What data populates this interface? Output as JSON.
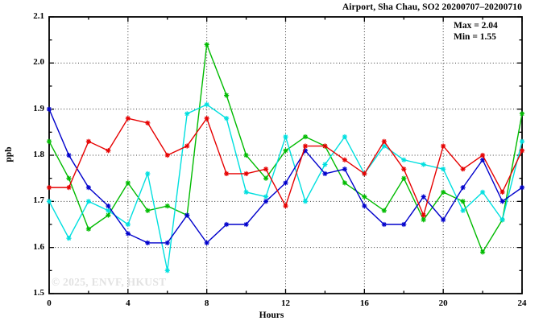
{
  "title": "Airport, Sha Chau, SO2 20200707–20200710",
  "annotation": {
    "max_label": "Max = 2.04",
    "min_label": "Min = 1.55"
  },
  "watermark": "© 2025, ENVF, HKUST",
  "axes": {
    "ylabel": "ppb",
    "xlabel": "Hours"
  },
  "chart_data": {
    "type": "line",
    "title": "Airport, Sha Chau, SO2 20200707–20200710",
    "xlabel": "Hours",
    "ylabel": "ppb",
    "xlim": [
      0,
      24
    ],
    "ylim": [
      1.5,
      2.1
    ],
    "legend": "none",
    "grid": "dotted-major",
    "x_major_ticks": [
      0,
      4,
      8,
      12,
      16,
      20,
      24
    ],
    "x_tick_labels": [
      "0",
      "4",
      "8",
      "12",
      "16",
      "20",
      "24"
    ],
    "x_minor_ticks": [
      2,
      6,
      10,
      14,
      18,
      22
    ],
    "y_major_ticks": [
      1.5,
      1.6,
      1.7,
      1.8,
      1.9,
      2.0,
      2.1
    ],
    "y_tick_labels": [
      "1.5",
      "1.6",
      "1.7",
      "1.8",
      "1.9",
      "2.0",
      "2.1"
    ],
    "y_minor_ticks": [
      1.55,
      1.65,
      1.75,
      1.85,
      1.95,
      2.05
    ],
    "grid_x": [
      4,
      8,
      12,
      16,
      20
    ],
    "grid_y": [
      1.6,
      1.7,
      1.8,
      1.9,
      2.0
    ],
    "annotations": [
      "Max = 2.04",
      "Min = 1.55"
    ],
    "stat_max": 2.04,
    "stat_min": 1.55,
    "x": [
      0,
      1,
      2,
      3,
      4,
      5,
      6,
      7,
      8,
      9,
      10,
      11,
      12,
      13,
      14,
      15,
      16,
      17,
      18,
      19,
      20,
      21,
      22,
      23,
      24
    ],
    "series": [
      {
        "name": "series-green",
        "color": "#00bb00",
        "values": [
          1.83,
          1.75,
          1.64,
          1.67,
          1.74,
          1.68,
          1.69,
          1.67,
          2.04,
          1.93,
          1.8,
          1.75,
          1.81,
          1.84,
          1.82,
          1.74,
          1.71,
          1.68,
          1.75,
          1.66,
          1.72,
          1.7,
          1.59,
          1.66,
          1.89
        ]
      },
      {
        "name": "series-cyan",
        "color": "#00dfdf",
        "values": [
          1.7,
          1.62,
          1.7,
          1.68,
          1.65,
          1.76,
          1.55,
          1.89,
          1.91,
          1.88,
          1.72,
          1.71,
          1.84,
          1.7,
          1.78,
          1.84,
          1.76,
          1.82,
          1.79,
          1.78,
          1.77,
          1.68,
          1.72,
          1.66,
          1.83
        ]
      },
      {
        "name": "series-blue",
        "color": "#0000cc",
        "values": [
          1.9,
          1.8,
          1.73,
          1.69,
          1.63,
          1.61,
          1.61,
          1.67,
          1.61,
          1.65,
          1.65,
          1.7,
          1.74,
          1.81,
          1.76,
          1.77,
          1.69,
          1.65,
          1.65,
          1.71,
          1.66,
          1.73,
          1.79,
          1.7,
          1.73
        ]
      },
      {
        "name": "series-red",
        "color": "#e60000",
        "values": [
          1.73,
          1.73,
          1.83,
          1.81,
          1.88,
          1.87,
          1.8,
          1.82,
          1.88,
          1.76,
          1.76,
          1.77,
          1.69,
          1.82,
          1.82,
          1.79,
          1.76,
          1.83,
          1.77,
          1.67,
          1.82,
          1.77,
          1.8,
          1.72,
          1.81
        ]
      }
    ]
  }
}
